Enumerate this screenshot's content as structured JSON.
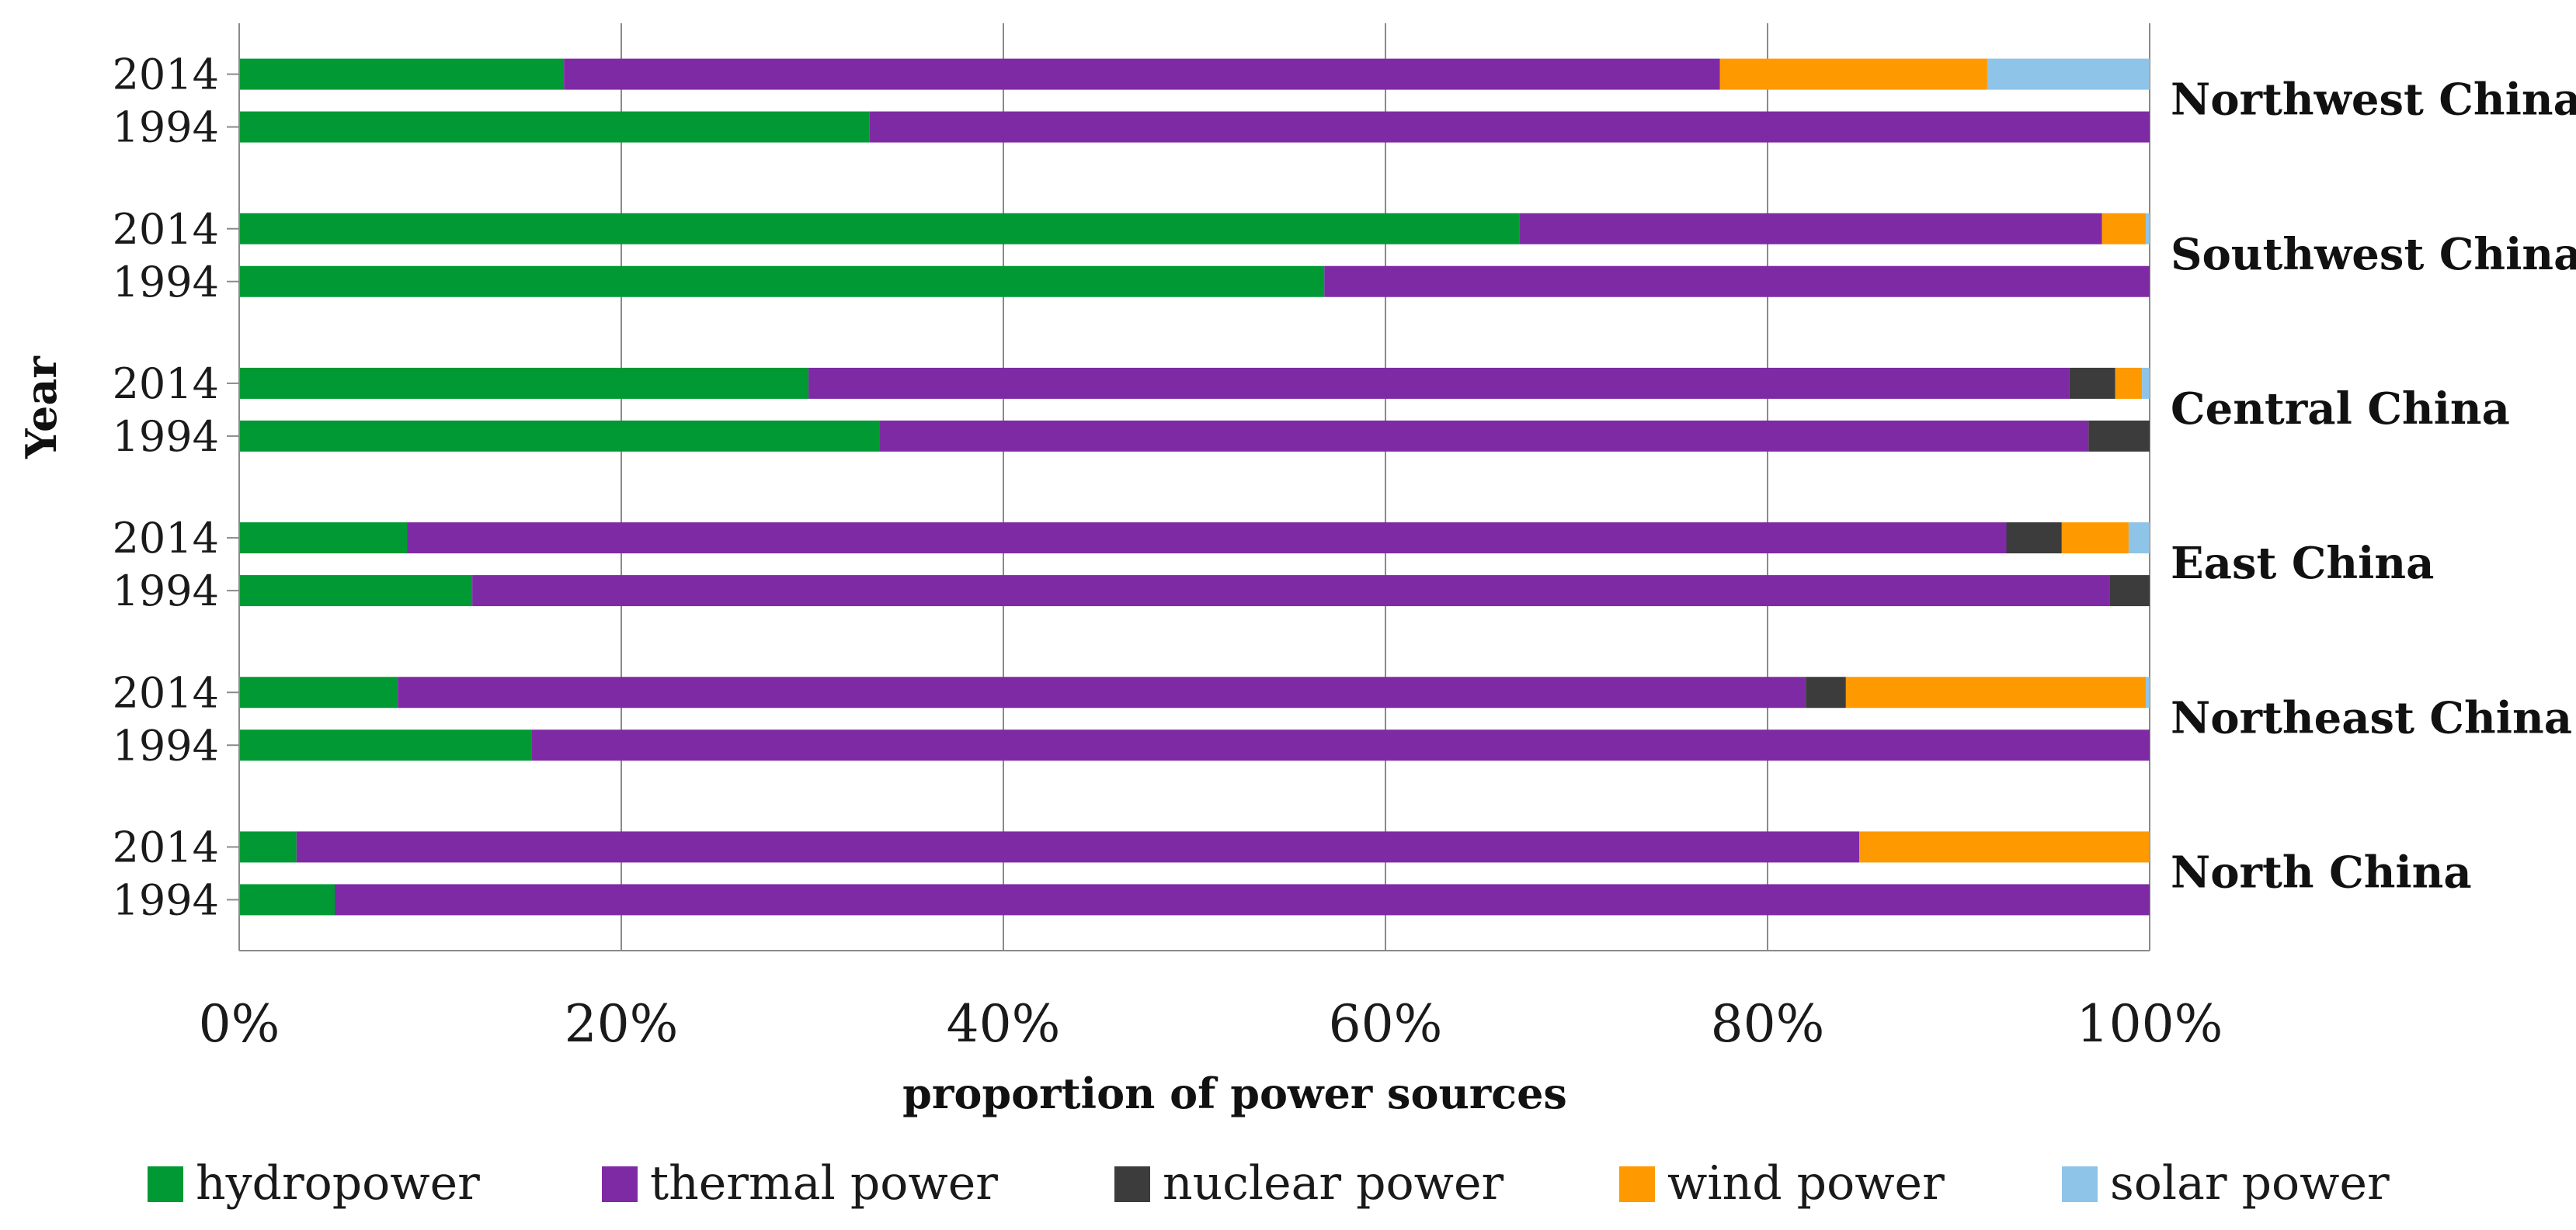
{
  "chart_data": {
    "type": "bar",
    "orientation": "horizontal",
    "stacked": true,
    "percent": true,
    "xlabel": "proportion of power sources",
    "ylabel": "Year",
    "xlim": [
      0,
      100
    ],
    "xticks": [
      "0%",
      "20%",
      "40%",
      "60%",
      "80%",
      "100%"
    ],
    "legend_position": "bottom",
    "series_names": [
      "hydropower",
      "thermal power",
      "nuclear power",
      "wind power",
      "solar power"
    ],
    "colors": [
      "#009933",
      "#7f2aa5",
      "#3c3c3c",
      "#ff9900",
      "#8ec4e8"
    ],
    "regions": [
      {
        "name": "Northwest China",
        "bars": [
          {
            "year": "2014",
            "values": [
              17,
              60.5,
              0,
              14,
              8.5
            ]
          },
          {
            "year": "1994",
            "values": [
              33,
              67,
              0,
              0,
              0
            ]
          }
        ]
      },
      {
        "name": "Southwest China",
        "bars": [
          {
            "year": "2014",
            "values": [
              67,
              30.5,
              0,
              2.3,
              0.2
            ]
          },
          {
            "year": "1994",
            "values": [
              56.8,
              43.2,
              0,
              0,
              0
            ]
          }
        ]
      },
      {
        "name": "Central China",
        "bars": [
          {
            "year": "2014",
            "values": [
              29.8,
              66,
              2.4,
              1.4,
              0.4
            ]
          },
          {
            "year": "1994",
            "values": [
              33.5,
              63.3,
              3.2,
              0,
              0
            ]
          }
        ]
      },
      {
        "name": "East China",
        "bars": [
          {
            "year": "2014",
            "values": [
              8.8,
              83.7,
              2.9,
              3.5,
              1.1
            ]
          },
          {
            "year": "1994",
            "values": [
              12.2,
              85.7,
              2.1,
              0,
              0
            ]
          }
        ]
      },
      {
        "name": "Northeast China",
        "bars": [
          {
            "year": "2014",
            "values": [
              8.3,
              73.7,
              2.1,
              15.7,
              0.2
            ]
          },
          {
            "year": "1994",
            "values": [
              15.3,
              84.7,
              0,
              0,
              0
            ]
          }
        ]
      },
      {
        "name": "North China",
        "bars": [
          {
            "year": "2014",
            "values": [
              3,
              81.8,
              0,
              15.2,
              0
            ]
          },
          {
            "year": "1994",
            "values": [
              5,
              95,
              0,
              0,
              0
            ]
          }
        ]
      }
    ]
  }
}
